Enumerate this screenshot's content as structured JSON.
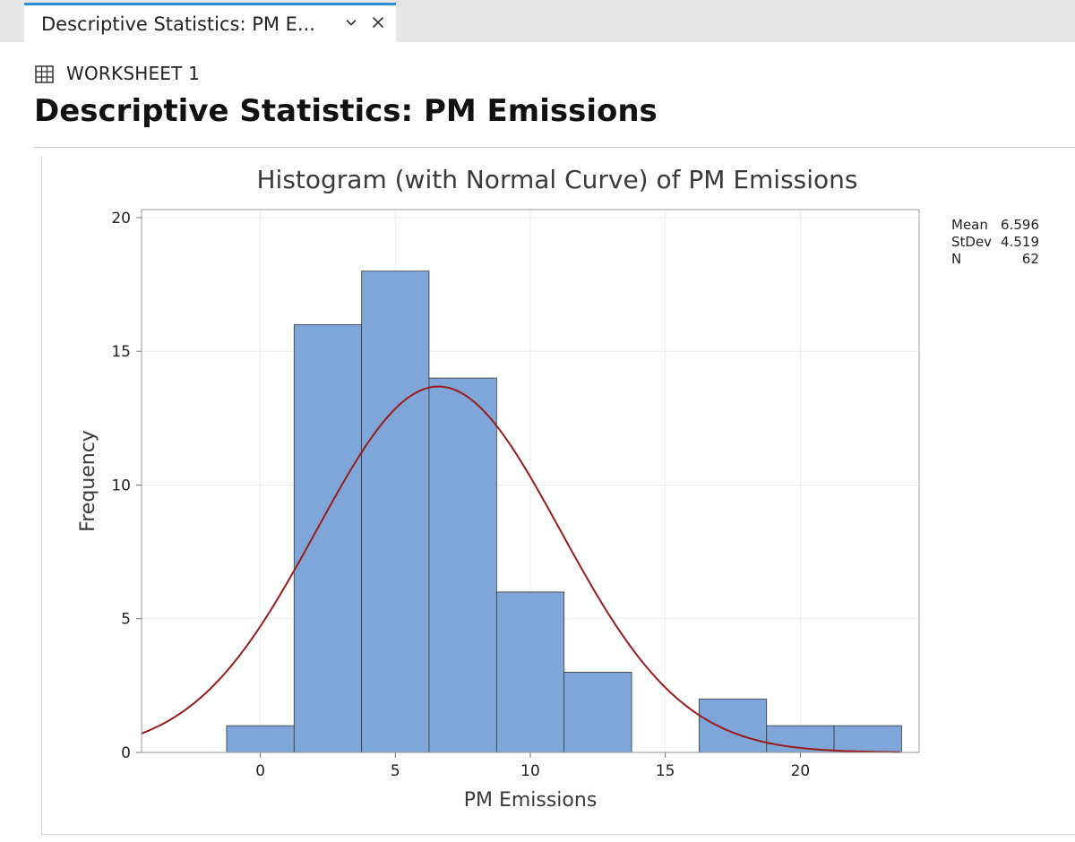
{
  "tab": {
    "title": "Descriptive Statistics: PM E...",
    "chevron_icon": "chevron-down-icon",
    "close_icon": "close-icon"
  },
  "worksheet": {
    "icon": "grid-icon",
    "label": "WORKSHEET 1"
  },
  "page": {
    "title": "Descriptive Statistics: PM Emissions"
  },
  "stats": [
    {
      "label": "Mean",
      "value": "6.596"
    },
    {
      "label": "StDev",
      "value": "4.519"
    },
    {
      "label": "N",
      "value": "62"
    }
  ],
  "colors": {
    "bar_fill": "#7ea6d8",
    "bar_stroke": "#3a3a3a",
    "curve": "#9b1b1b",
    "grid": "#ececec",
    "tab_accent": "#2f8dd3"
  },
  "chart_data": {
    "type": "bar",
    "title": "Histogram (with Normal Curve) of PM Emissions",
    "xlabel": "PM Emissions",
    "ylabel": "Frequency",
    "bin_width": 2.5,
    "bin_midpoints": [
      0,
      2.5,
      5,
      7.5,
      10,
      12.5,
      15,
      17.5,
      20,
      22.5
    ],
    "values": [
      1,
      16,
      18,
      14,
      6,
      3,
      0,
      2,
      1,
      1
    ],
    "xlim": [
      -4.4,
      24.4
    ],
    "ylim": [
      0,
      20.3
    ],
    "x_ticks": [
      0,
      5,
      10,
      15,
      20
    ],
    "y_ticks": [
      0,
      5,
      10,
      15,
      20
    ],
    "normal_curve": {
      "mean": 6.596,
      "stdev": 4.519,
      "n": 62
    },
    "grid": true
  }
}
